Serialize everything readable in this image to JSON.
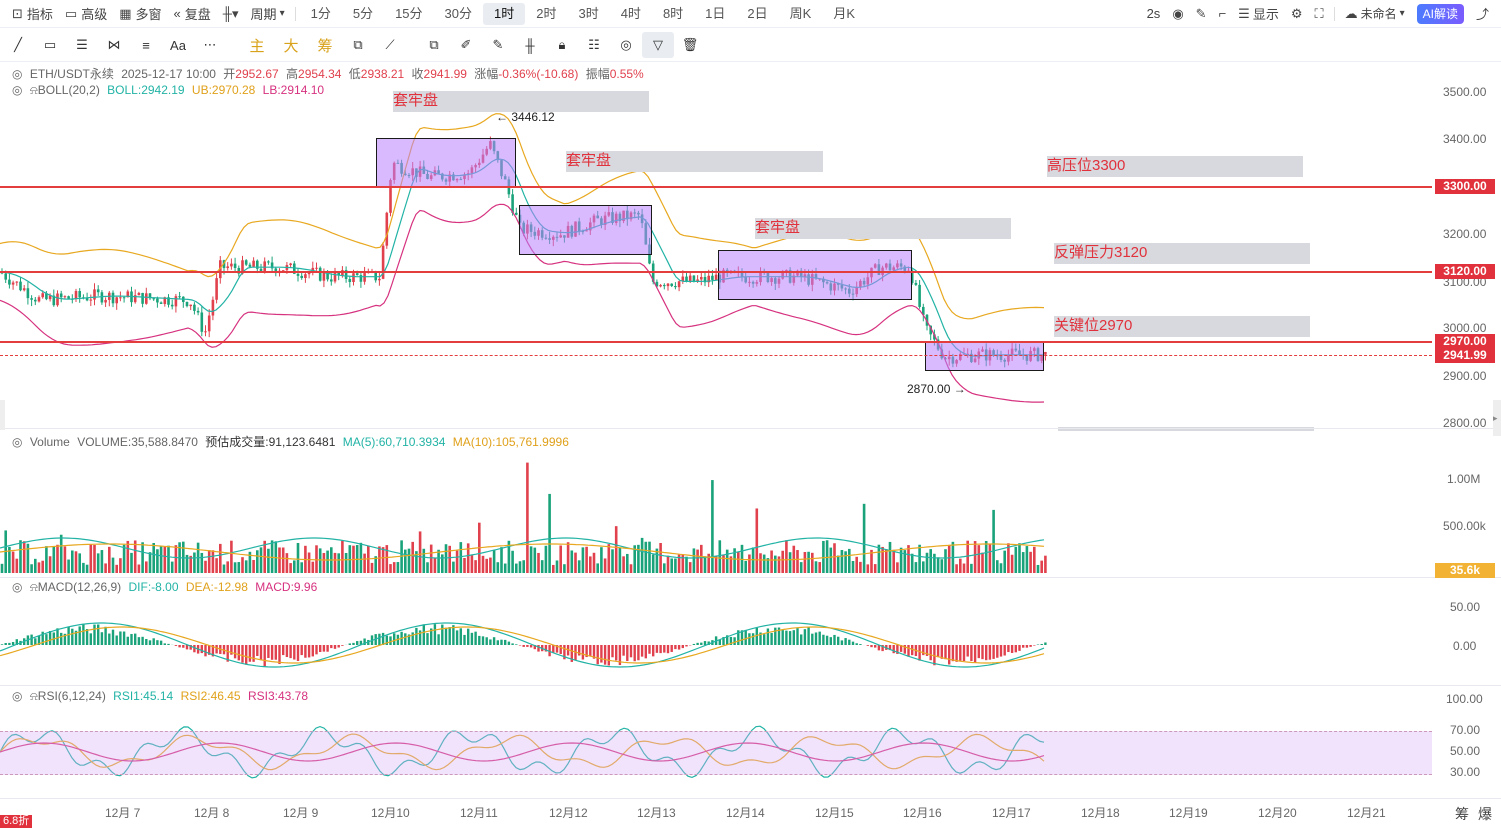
{
  "topbar": {
    "left": [
      {
        "name": "indicators-button",
        "icon": "indicator-icon",
        "label": "指标"
      },
      {
        "name": "advanced-button",
        "icon": "calendar-icon",
        "label": "高级"
      },
      {
        "name": "multiwindow-button",
        "icon": "grid-icon",
        "label": "多窗"
      },
      {
        "name": "replay-button",
        "icon": "rewind-icon",
        "label": "复盘"
      },
      {
        "name": "chart-type-button",
        "icon": "candle-icon",
        "label": ""
      },
      {
        "name": "period-dropdown",
        "icon": "",
        "label": "周期"
      }
    ],
    "intervals": [
      "1分",
      "5分",
      "15分",
      "30分",
      "1时",
      "2时",
      "3时",
      "4时",
      "8时",
      "1日",
      "2日",
      "周K",
      "月K"
    ],
    "active_interval": "1时",
    "right": {
      "refresh": "2s",
      "display": "显示",
      "layout_name": "未命名",
      "ai_label": "AI解读"
    }
  },
  "toolbar": {
    "chips": [
      "主",
      "大",
      "筹"
    ]
  },
  "header": {
    "symbol": "ETH/USDT永续",
    "time": "2025-12-17 10:00",
    "open_label": "开",
    "open": "2952.67",
    "high_label": "高",
    "high": "2954.34",
    "low_label": "低",
    "low": "2938.21",
    "close_label": "收",
    "close": "2941.99",
    "chg_label": "涨幅",
    "chg": "-0.36%(-10.68)",
    "amp_label": "振幅",
    "amp": "0.55%"
  },
  "boll": {
    "label": "BOLL(20,2)",
    "mid": "BOLL:2942.19",
    "ub": "UB:2970.28",
    "lb": "LB:2914.10"
  },
  "price_axis": [
    "3500.00",
    "3400.00",
    "3300.00",
    "3200.00",
    "3100.00",
    "3000.00",
    "2900.00",
    "2800.00"
  ],
  "price_tags": {
    "t3300": "3300.00",
    "t3120": "3120.00",
    "t2970": "2970.00",
    "last": "2941.99"
  },
  "annotations": {
    "hi": "3446.12",
    "lo": "2870.00",
    "z1": "套牢盘",
    "z2": "套牢盘",
    "z3": "套牢盘",
    "r1": "高压位3300",
    "r2": "反弹压力3120",
    "r3": "关键位2970"
  },
  "volume": {
    "title": "Volume",
    "vol": "VOLUME:35,588.8470",
    "est": "预估成交量:91,123.6481",
    "ma5": "MA(5):60,710.3934",
    "ma10": "MA(10):105,761.9996",
    "axis": [
      "1.00M",
      "500.00k"
    ],
    "tag": "35.6k"
  },
  "macd": {
    "title": "MACD(12,26,9)",
    "dif": "DIF:-8.00",
    "dea": "DEA:-12.98",
    "macd": "MACD:9.96",
    "axis": [
      "50.00",
      "0.00"
    ]
  },
  "rsi": {
    "title": "RSI(6,12,24)",
    "r1": "RSI1:45.14",
    "r2": "RSI2:46.45",
    "r3": "RSI3:43.78",
    "axis": [
      "100.00",
      "70.00",
      "50.00",
      "30.00"
    ]
  },
  "dates": [
    "12月 7",
    "12月 8",
    "12月 9",
    "12月10",
    "12月11",
    "12月12",
    "12月13",
    "12月14",
    "12月15",
    "12月16",
    "12月17",
    "12月18",
    "12月19",
    "12月20",
    "12月21"
  ],
  "footer": {
    "left_badge": "6.8折",
    "right1": "筹",
    "right2": "爆"
  },
  "colors": {
    "up": "#e0414d",
    "down": "#1aa37a",
    "boll_ub": "#e8a820",
    "boll_lb": "#d6327f",
    "boll_mid": "#22b3a5",
    "box": "#ba82ff"
  }
}
